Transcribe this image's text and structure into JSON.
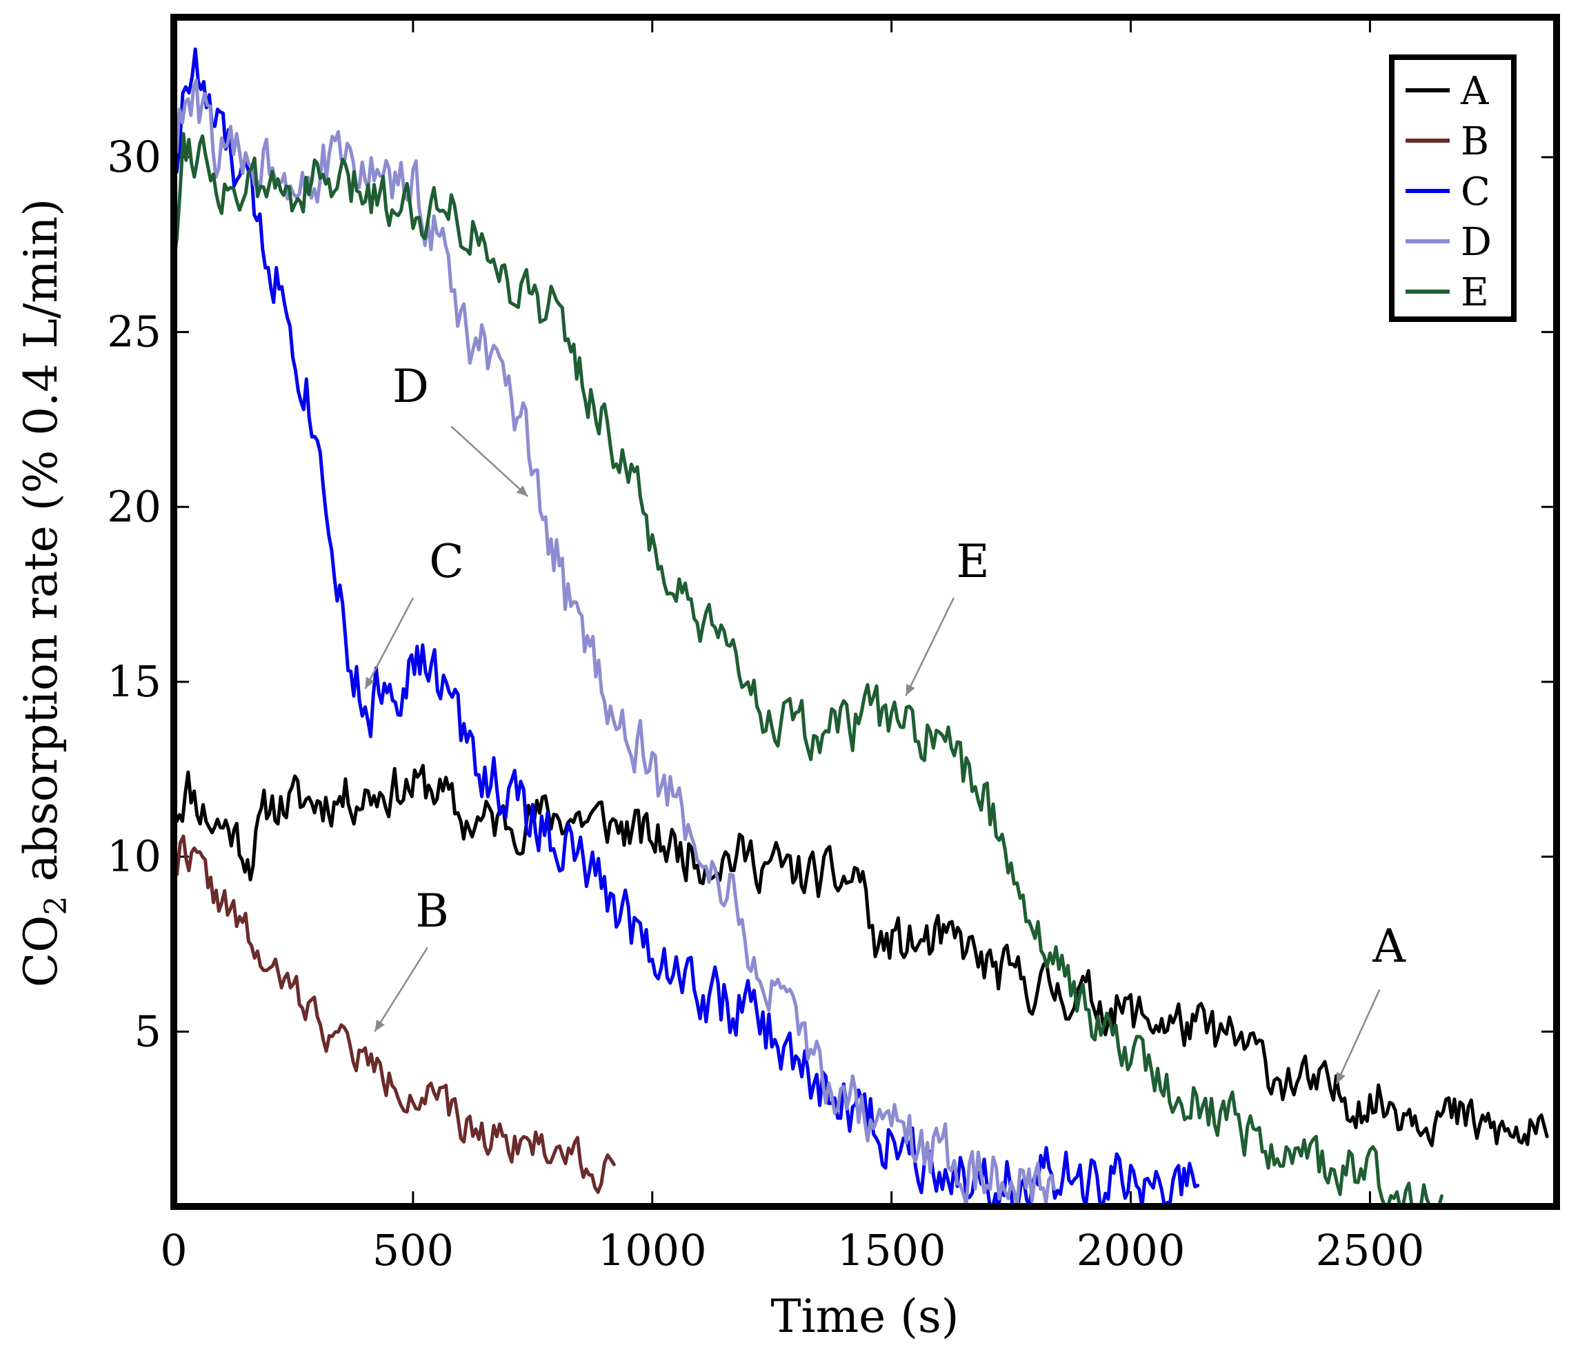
{
  "chart_data": {
    "type": "line",
    "title": "",
    "xlabel": "Time (s)",
    "ylabel_main": "CO",
    "ylabel_sub": "2",
    "ylabel_rest": " absorption rate (% 0.4 L/min)",
    "xlim": [
      0,
      2890
    ],
    "ylim": [
      0,
      34
    ],
    "xticks": [
      0,
      500,
      1000,
      1500,
      2000,
      2500
    ],
    "xtick_labels": [
      "0",
      "500",
      "1000",
      "1500",
      "2000",
      "2500"
    ],
    "yticks": [
      5,
      10,
      15,
      20,
      25,
      30
    ],
    "ytick_labels": [
      "5",
      "10",
      "15",
      "20",
      "25",
      "30"
    ],
    "legend_position": "top-right",
    "series": [
      {
        "name": "A",
        "color": "#000000",
        "noise": 0.7,
        "seed": 11,
        "points": [
          [
            0,
            11.3
          ],
          [
            30,
            12.0
          ],
          [
            80,
            11.0
          ],
          [
            120,
            10.8
          ],
          [
            160,
            10.0
          ],
          [
            200,
            11.5
          ],
          [
            300,
            11.6
          ],
          [
            400,
            11.8
          ],
          [
            480,
            12.0
          ],
          [
            550,
            12.0
          ],
          [
            600,
            11.0
          ],
          [
            700,
            11.0
          ],
          [
            800,
            11.2
          ],
          [
            900,
            11.0
          ],
          [
            1000,
            10.5
          ],
          [
            1100,
            10.0
          ],
          [
            1200,
            10.0
          ],
          [
            1300,
            9.5
          ],
          [
            1400,
            9.3
          ],
          [
            1440,
            9.5
          ],
          [
            1460,
            7.5
          ],
          [
            1550,
            7.5
          ],
          [
            1650,
            7.5
          ],
          [
            1700,
            6.8
          ],
          [
            1800,
            6.3
          ],
          [
            1900,
            6.0
          ],
          [
            2000,
            5.5
          ],
          [
            2100,
            5.2
          ],
          [
            2200,
            4.8
          ],
          [
            2250,
            4.5
          ],
          [
            2300,
            3.8
          ],
          [
            2400,
            3.3
          ],
          [
            2500,
            3.0
          ],
          [
            2600,
            2.8
          ],
          [
            2700,
            2.4
          ],
          [
            2800,
            2.0
          ],
          [
            2870,
            2.0
          ]
        ]
      },
      {
        "name": "B",
        "color": "#6b2b2b",
        "noise": 0.55,
        "seed": 22,
        "points": [
          [
            0,
            9.5
          ],
          [
            20,
            10.5
          ],
          [
            60,
            9.5
          ],
          [
            100,
            8.7
          ],
          [
            150,
            7.8
          ],
          [
            200,
            6.6
          ],
          [
            250,
            6.2
          ],
          [
            300,
            5.4
          ],
          [
            350,
            4.7
          ],
          [
            400,
            4.2
          ],
          [
            450,
            3.6
          ],
          [
            500,
            3.3
          ],
          [
            550,
            3.0
          ],
          [
            600,
            2.3
          ],
          [
            650,
            2.1
          ],
          [
            700,
            2.0
          ],
          [
            750,
            1.8
          ],
          [
            800,
            1.6
          ],
          [
            850,
            1.5
          ],
          [
            880,
            0.8
          ],
          [
            900,
            1.4
          ],
          [
            920,
            1.2
          ]
        ]
      },
      {
        "name": "C",
        "color": "#0000ee",
        "noise": 0.9,
        "seed": 33,
        "points": [
          [
            0,
            29.5
          ],
          [
            25,
            32.0
          ],
          [
            45,
            32.5
          ],
          [
            80,
            31.0
          ],
          [
            120,
            30.0
          ],
          [
            150,
            29.0
          ],
          [
            180,
            28.0
          ],
          [
            220,
            26.5
          ],
          [
            260,
            24.5
          ],
          [
            300,
            22.0
          ],
          [
            330,
            19.5
          ],
          [
            370,
            15.5
          ],
          [
            400,
            14.0
          ],
          [
            440,
            15.0
          ],
          [
            480,
            15.2
          ],
          [
            520,
            15.5
          ],
          [
            570,
            14.8
          ],
          [
            600,
            13.5
          ],
          [
            650,
            12.5
          ],
          [
            700,
            11.8
          ],
          [
            750,
            11.0
          ],
          [
            800,
            10.6
          ],
          [
            850,
            9.8
          ],
          [
            900,
            9.0
          ],
          [
            950,
            8.3
          ],
          [
            1000,
            7.5
          ],
          [
            1050,
            6.8
          ],
          [
            1100,
            6.2
          ],
          [
            1150,
            5.8
          ],
          [
            1200,
            5.5
          ],
          [
            1250,
            4.9
          ],
          [
            1300,
            4.0
          ],
          [
            1350,
            3.4
          ],
          [
            1400,
            3.0
          ],
          [
            1450,
            2.5
          ],
          [
            1500,
            2.0
          ],
          [
            1550,
            1.7
          ],
          [
            1600,
            1.4
          ],
          [
            1650,
            0.9
          ],
          [
            1700,
            0.8
          ],
          [
            1800,
            0.7
          ],
          [
            1900,
            0.6
          ],
          [
            2000,
            0.6
          ],
          [
            2100,
            0.5
          ],
          [
            2140,
            0.6
          ]
        ]
      },
      {
        "name": "D",
        "color": "#8c8cd0",
        "noise": 0.9,
        "seed": 44,
        "points": [
          [
            0,
            30.5
          ],
          [
            30,
            31.5
          ],
          [
            70,
            31.0
          ],
          [
            100,
            30.0
          ],
          [
            150,
            30.0
          ],
          [
            200,
            30.0
          ],
          [
            250,
            29.6
          ],
          [
            300,
            29.6
          ],
          [
            350,
            29.8
          ],
          [
            400,
            29.7
          ],
          [
            450,
            29.3
          ],
          [
            500,
            29.0
          ],
          [
            550,
            28.0
          ],
          [
            580,
            26.5
          ],
          [
            600,
            25.0
          ],
          [
            650,
            24.5
          ],
          [
            700,
            23.0
          ],
          [
            730,
            22.0
          ],
          [
            760,
            20.0
          ],
          [
            800,
            18.5
          ],
          [
            830,
            17.0
          ],
          [
            870,
            15.8
          ],
          [
            900,
            15.0
          ],
          [
            950,
            13.5
          ],
          [
            1000,
            12.5
          ],
          [
            1050,
            11.3
          ],
          [
            1100,
            10.5
          ],
          [
            1150,
            9.2
          ],
          [
            1200,
            7.5
          ],
          [
            1250,
            6.0
          ],
          [
            1300,
            4.8
          ],
          [
            1350,
            4.0
          ],
          [
            1400,
            3.2
          ],
          [
            1450,
            2.6
          ],
          [
            1500,
            2.3
          ],
          [
            1550,
            1.9
          ],
          [
            1600,
            1.5
          ],
          [
            1650,
            1.2
          ],
          [
            1700,
            1.0
          ],
          [
            1750,
            0.8
          ],
          [
            1800,
            0.6
          ],
          [
            1840,
            0.5
          ]
        ]
      },
      {
        "name": "E",
        "color": "#1e5e32",
        "noise": 0.75,
        "seed": 55,
        "points": [
          [
            0,
            27.0
          ],
          [
            20,
            30.5
          ],
          [
            60,
            30.2
          ],
          [
            100,
            29.2
          ],
          [
            150,
            29.0
          ],
          [
            200,
            29.0
          ],
          [
            300,
            29.2
          ],
          [
            400,
            29.0
          ],
          [
            450,
            28.8
          ],
          [
            500,
            28.6
          ],
          [
            550,
            28.5
          ],
          [
            580,
            29.0
          ],
          [
            600,
            28.3
          ],
          [
            650,
            27.5
          ],
          [
            680,
            26.5
          ],
          [
            720,
            26.5
          ],
          [
            760,
            26.0
          ],
          [
            800,
            25.5
          ],
          [
            830,
            24.5
          ],
          [
            860,
            23.5
          ],
          [
            900,
            22.5
          ],
          [
            950,
            21.0
          ],
          [
            1000,
            19.0
          ],
          [
            1050,
            17.5
          ],
          [
            1100,
            16.5
          ],
          [
            1150,
            15.8
          ],
          [
            1200,
            15.0
          ],
          [
            1250,
            14.0
          ],
          [
            1300,
            13.5
          ],
          [
            1350,
            13.5
          ],
          [
            1400,
            13.6
          ],
          [
            1450,
            14.0
          ],
          [
            1500,
            14.0
          ],
          [
            1550,
            13.6
          ],
          [
            1600,
            13.2
          ],
          [
            1650,
            12.5
          ],
          [
            1700,
            11.5
          ],
          [
            1750,
            10.0
          ],
          [
            1800,
            8.0
          ],
          [
            1850,
            6.8
          ],
          [
            1900,
            5.8
          ],
          [
            1950,
            5.0
          ],
          [
            2000,
            4.3
          ],
          [
            2050,
            3.9
          ],
          [
            2100,
            3.4
          ],
          [
            2150,
            3.0
          ],
          [
            2200,
            2.6
          ],
          [
            2250,
            2.1
          ],
          [
            2300,
            1.8
          ],
          [
            2350,
            1.4
          ],
          [
            2400,
            1.2
          ],
          [
            2450,
            1.0
          ],
          [
            2500,
            0.8
          ],
          [
            2550,
            0.6
          ],
          [
            2600,
            0.5
          ],
          [
            2650,
            0.3
          ]
        ]
      }
    ],
    "annotations": [
      {
        "label": "A",
        "text_at": [
          2540,
          7.0
        ],
        "arrow_from": [
          2520,
          6.2
        ],
        "arrow_to": [
          2430,
          3.5
        ]
      },
      {
        "label": "B",
        "text_at": [
          540,
          8.0
        ],
        "arrow_from": [
          530,
          7.4
        ],
        "arrow_to": [
          420,
          5.0
        ]
      },
      {
        "label": "C",
        "text_at": [
          570,
          18.0
        ],
        "arrow_from": [
          500,
          17.4
        ],
        "arrow_to": [
          400,
          14.8
        ]
      },
      {
        "label": "D",
        "text_at": [
          495,
          23.0
        ],
        "arrow_from": [
          580,
          22.3
        ],
        "arrow_to": [
          740,
          20.3
        ]
      },
      {
        "label": "E",
        "text_at": [
          1670,
          18.0
        ],
        "arrow_from": [
          1630,
          17.4
        ],
        "arrow_to": [
          1530,
          14.6
        ]
      }
    ]
  }
}
